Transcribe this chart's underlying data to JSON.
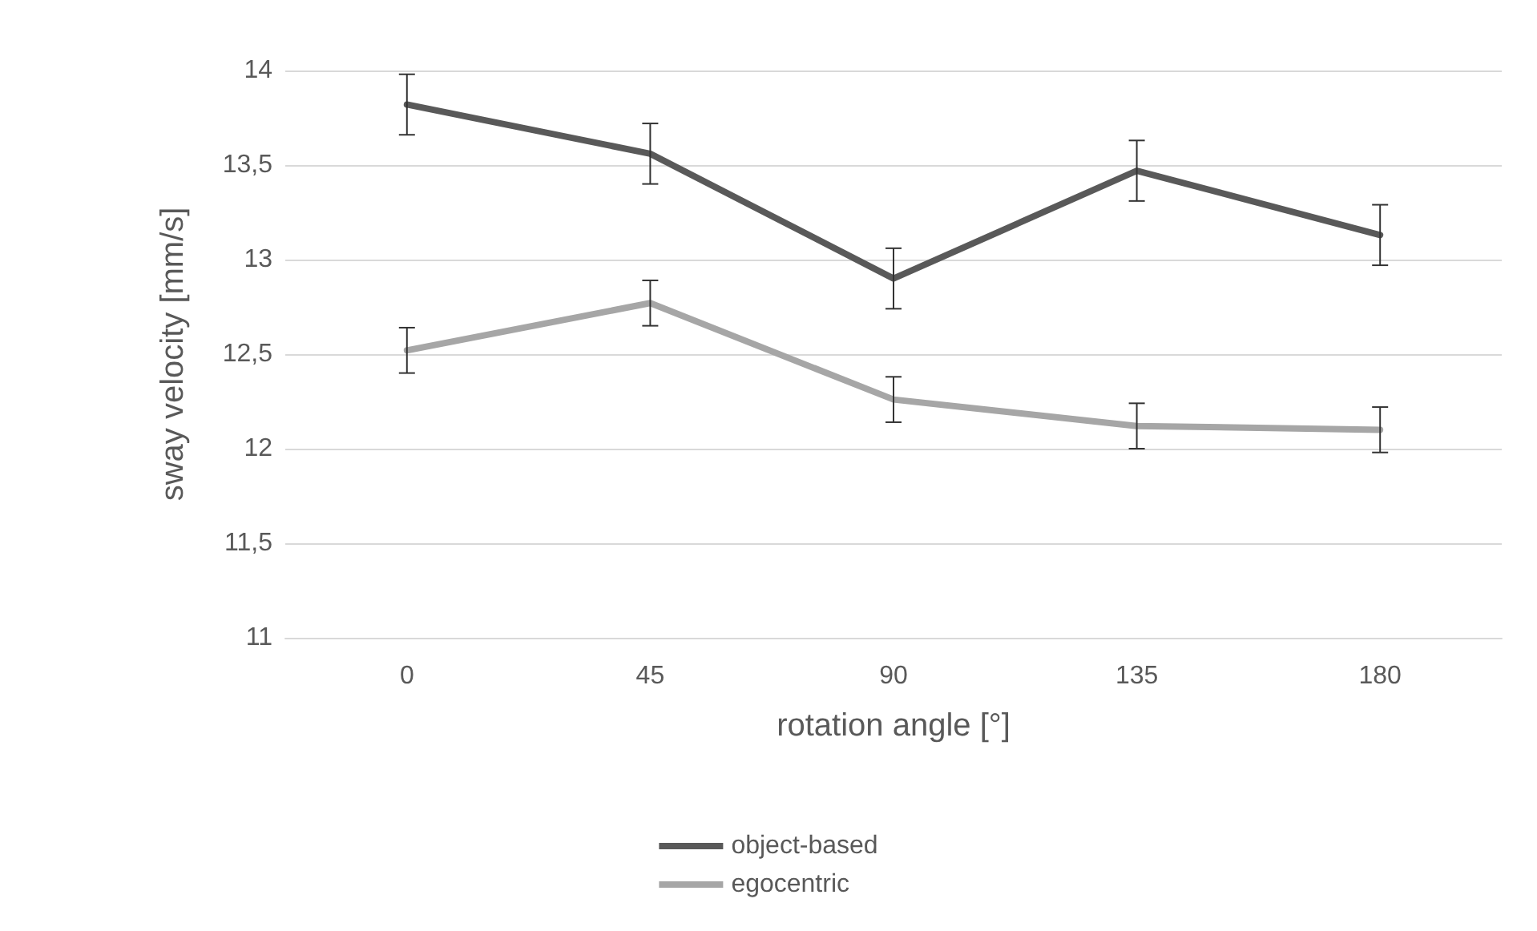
{
  "chart_data": {
    "type": "line",
    "xlabel": "rotation angle [°]",
    "ylabel": "sway velocity [mm/s]",
    "categories": [
      "0",
      "45",
      "90",
      "135",
      "180"
    ],
    "series": [
      {
        "name": "object-based",
        "color": "#595959",
        "values": [
          13.82,
          13.56,
          12.9,
          13.47,
          13.13
        ],
        "errors": [
          0.16,
          0.16,
          0.16,
          0.16,
          0.16
        ]
      },
      {
        "name": "egocentric",
        "color": "#a6a6a6",
        "values": [
          12.52,
          12.77,
          12.26,
          12.12,
          12.1
        ],
        "errors": [
          0.12,
          0.12,
          0.12,
          0.12,
          0.12
        ]
      }
    ],
    "ylim": [
      11,
      14
    ],
    "yticks": [
      {
        "value": 11,
        "label": "11"
      },
      {
        "value": 11.5,
        "label": "11,5"
      },
      {
        "value": 12,
        "label": "12"
      },
      {
        "value": 12.5,
        "label": "12,5"
      },
      {
        "value": 13,
        "label": "13"
      },
      {
        "value": 13.5,
        "label": "13,5"
      },
      {
        "value": 14,
        "label": "14"
      }
    ],
    "grid": "y",
    "legend": "bottom",
    "marker": "none",
    "line_style": "solid"
  }
}
